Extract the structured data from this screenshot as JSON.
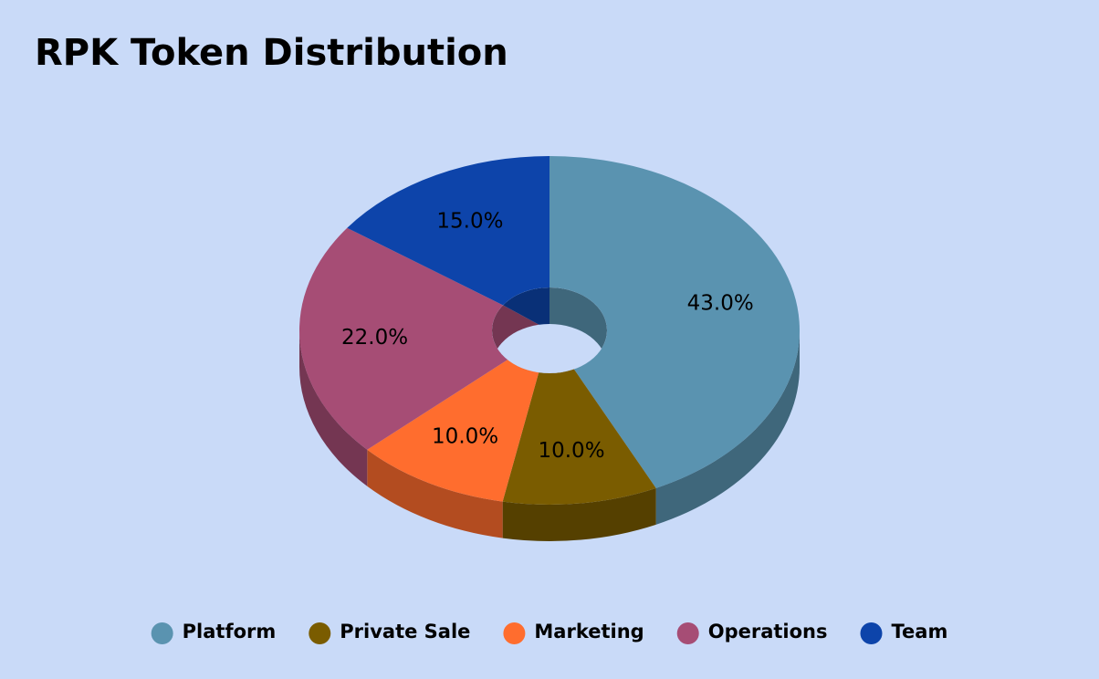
{
  "chart_data": {
    "type": "pie",
    "style": "3d-donut",
    "title": "RPK Token Distribution",
    "categories": [
      "Platform",
      "Private Sale",
      "Marketing",
      "Operations",
      "Team"
    ],
    "values": [
      43,
      10,
      10,
      22,
      15
    ],
    "value_labels": [
      "43.0%",
      "10.0%",
      "10.0%",
      "22.0%",
      "15.0%"
    ],
    "colors": [
      "#5a93b0",
      "#7a5c00",
      "#ff6d2e",
      "#a64d75",
      "#0d44aa"
    ],
    "legend": "bottom"
  }
}
